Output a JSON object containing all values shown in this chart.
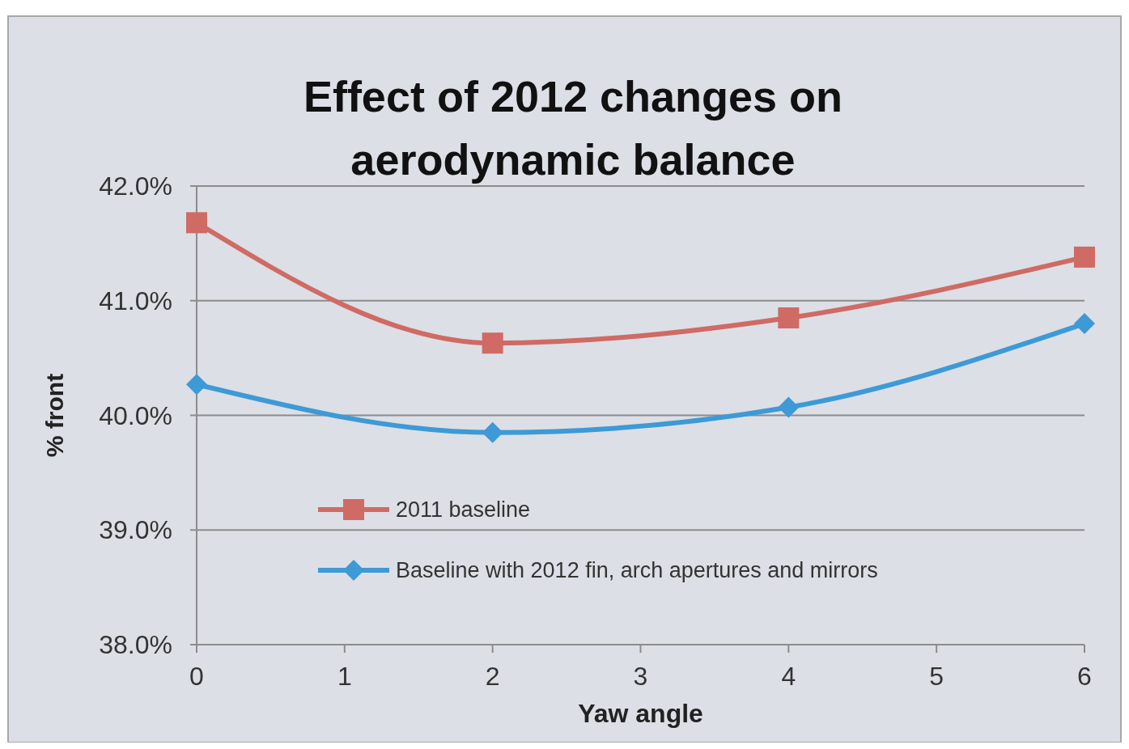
{
  "chart_data": {
    "type": "line",
    "title": "Effect of 2012 changes on aerodynamic balance",
    "xlabel": "Yaw angle",
    "ylabel": "% front",
    "x": [
      0,
      2,
      4,
      6
    ],
    "series": [
      {
        "name": "2011 baseline",
        "color": "#cf6b64",
        "values": [
          41.68,
          40.63,
          40.85,
          41.38
        ],
        "marker": "square"
      },
      {
        "name": "Baseline with 2012 fin, arch apertures and mirrors",
        "color": "#3d9ad6",
        "values": [
          40.27,
          39.85,
          40.07,
          40.8
        ],
        "marker": "diamond"
      }
    ],
    "xlim": [
      0,
      6
    ],
    "xticks": [
      0,
      1,
      2,
      3,
      4,
      5,
      6
    ],
    "ylim": [
      38,
      42
    ],
    "yticks": [
      {
        "value": 38,
        "label": "38.0%"
      },
      {
        "value": 39,
        "label": "39.0%"
      },
      {
        "value": 40,
        "label": "40.0%"
      },
      {
        "value": 41,
        "label": "41.0%"
      },
      {
        "value": 42,
        "label": "42.0%"
      }
    ],
    "grid": "y",
    "legend": "bottom left",
    "line_style": "solid"
  }
}
